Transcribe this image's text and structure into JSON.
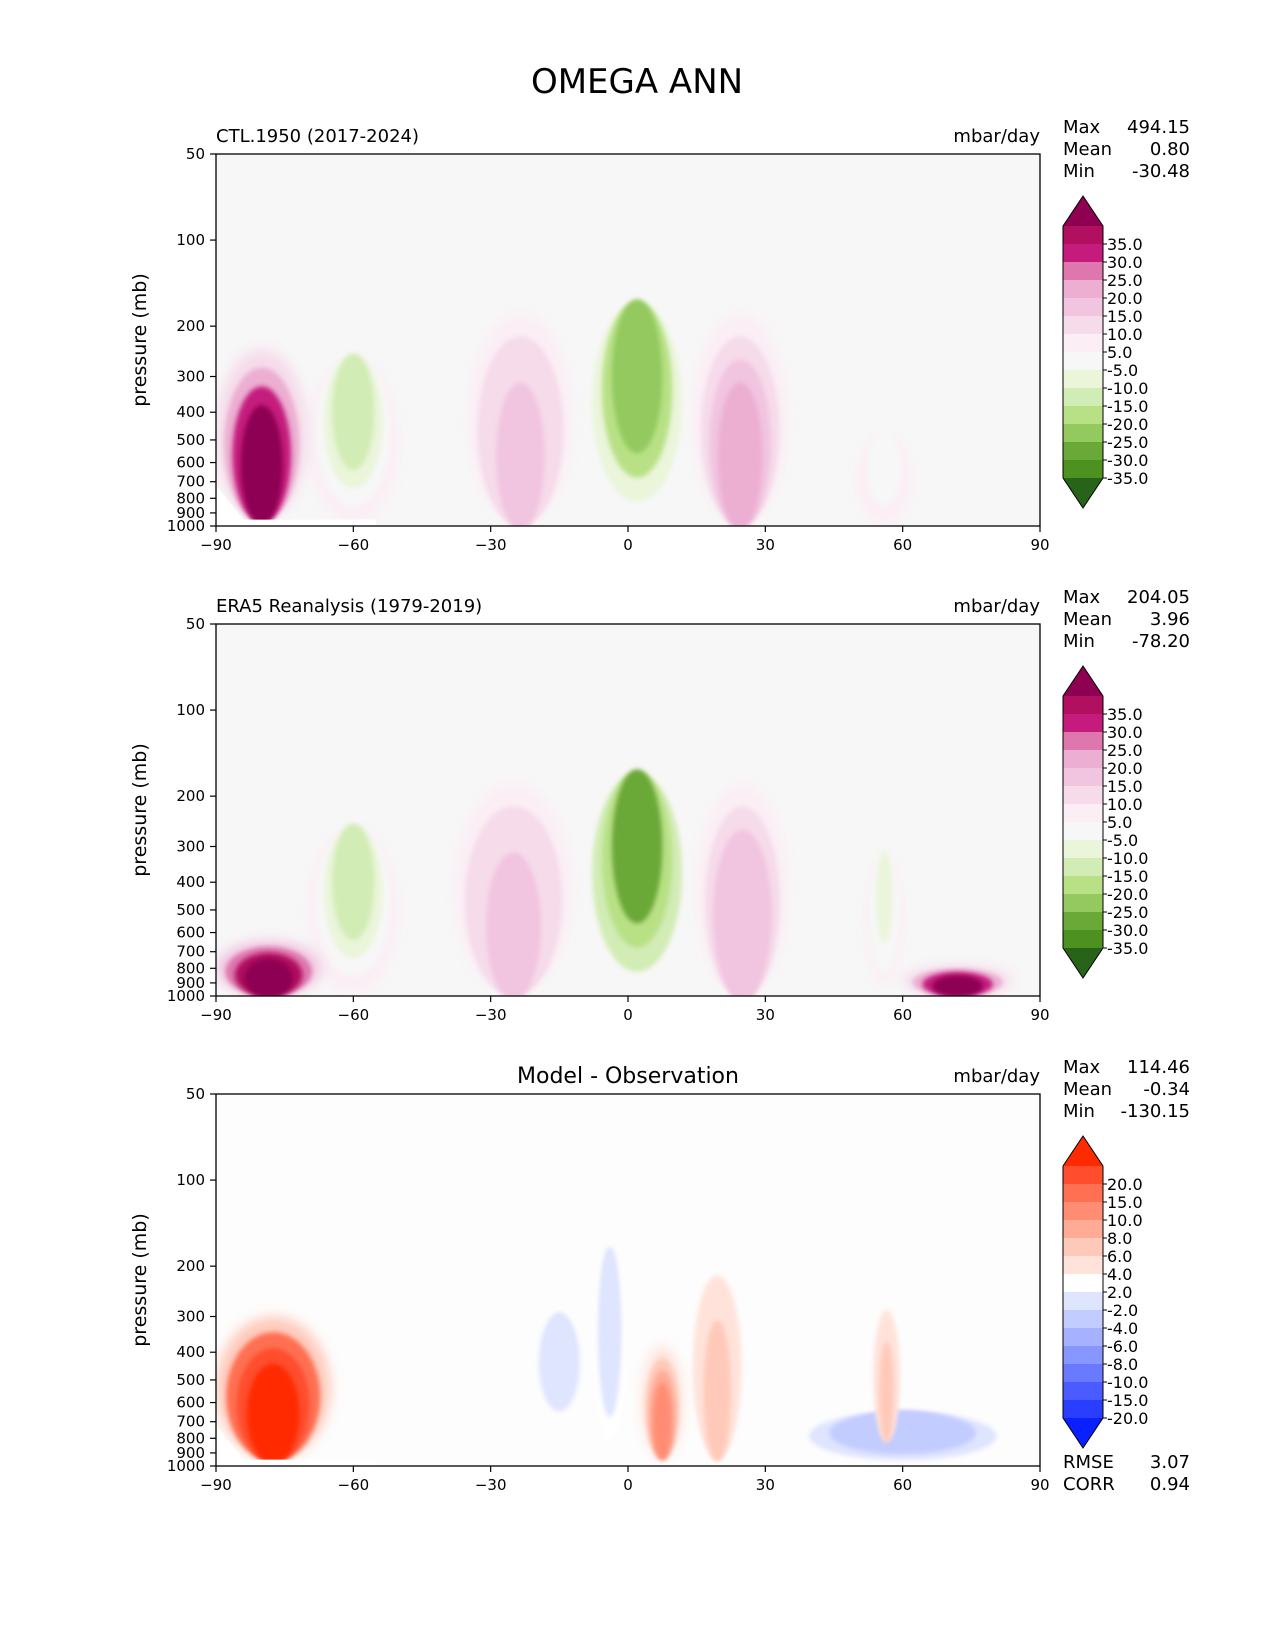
{
  "figure": {
    "title": "OMEGA ANN",
    "units": "mbar/day",
    "ylabel": "pressure (mb)"
  },
  "chart_data": [
    {
      "type": "heatmap",
      "title": "CTL.1950 (2017-2024)",
      "units": "mbar/day",
      "xlabel": "",
      "ylabel": "pressure (mb)",
      "xlim": [
        -90,
        90
      ],
      "ylim": [
        1000,
        50
      ],
      "xticks": [
        "−90",
        "−60",
        "−30",
        "0",
        "30",
        "60",
        "90"
      ],
      "yticks": [
        "50",
        "100",
        "200",
        "300",
        "400",
        "500",
        "600",
        "700",
        "800",
        "900",
        "1000"
      ],
      "stats": {
        "max_label": "Max",
        "max": "494.15",
        "mean_label": "Mean",
        "mean": "0.80",
        "min_label": "Min",
        "min": "-30.48"
      },
      "colorbar": {
        "labels": [
          "35.0",
          "30.0",
          "25.0",
          "20.0",
          "15.0",
          "10.0",
          "5.0",
          "-5.0",
          "-10.0",
          "-15.0",
          "-20.0",
          "-25.0",
          "-30.0",
          "-35.0"
        ],
        "colors": [
          "#8e0152",
          "#b0105f",
          "#c51b7d",
          "#de77ae",
          "#ecaed1",
          "#f1c4e0",
          "#f6dbea",
          "#fbeef5",
          "#f7f7f7",
          "#eaf5da",
          "#d2ecb5",
          "#b8e186",
          "#93c95f",
          "#6aa838",
          "#4d9221",
          "#276419"
        ]
      },
      "features": [
        {
          "name": "updraft-tropics",
          "lat": [
            -10,
            14
          ],
          "p": [
            170,
            1000
          ],
          "value": -30
        },
        {
          "name": "downdraft-south-subtropics",
          "lat": [
            -35,
            -12
          ],
          "p": [
            180,
            980
          ],
          "value": 12
        },
        {
          "name": "downdraft-north-subtropics",
          "lat": [
            14,
            35
          ],
          "p": [
            180,
            980
          ],
          "value": 15
        },
        {
          "name": "updraft-south-midlat",
          "lat": [
            -70,
            -50
          ],
          "p": [
            260,
            990
          ],
          "value": -18
        },
        {
          "name": "downdraft-antarctic",
          "lat": [
            -90,
            -70
          ],
          "p": [
            240,
            950
          ],
          "value": 35
        },
        {
          "name": "updraft-north-midlat",
          "lat": [
            50,
            62
          ],
          "p": [
            480,
            1000
          ],
          "value": -8
        }
      ]
    },
    {
      "type": "heatmap",
      "title": "ERA5 Reanalysis (1979-2019)",
      "units": "mbar/day",
      "xlabel": "",
      "ylabel": "pressure (mb)",
      "xlim": [
        -90,
        90
      ],
      "ylim": [
        1000,
        50
      ],
      "xticks": [
        "−90",
        "−60",
        "−30",
        "0",
        "30",
        "60",
        "90"
      ],
      "yticks": [
        "50",
        "100",
        "200",
        "300",
        "400",
        "500",
        "600",
        "700",
        "800",
        "900",
        "1000"
      ],
      "stats": {
        "max_label": "Max",
        "max": "204.05",
        "mean_label": "Mean",
        "mean": "3.96",
        "min_label": "Min",
        "min": "-78.20"
      },
      "colorbar": {
        "labels": [
          "35.0",
          "30.0",
          "25.0",
          "20.0",
          "15.0",
          "10.0",
          "5.0",
          "-5.0",
          "-10.0",
          "-15.0",
          "-20.0",
          "-25.0",
          "-30.0",
          "-35.0"
        ],
        "colors": [
          "#8e0152",
          "#b0105f",
          "#c51b7d",
          "#de77ae",
          "#ecaed1",
          "#f1c4e0",
          "#f6dbea",
          "#fbeef5",
          "#f7f7f7",
          "#eaf5da",
          "#d2ecb5",
          "#b8e186",
          "#93c95f",
          "#6aa838",
          "#4d9221",
          "#276419"
        ]
      },
      "features": [
        {
          "name": "updraft-tropics",
          "lat": [
            -10,
            14
          ],
          "p": [
            170,
            1000
          ],
          "value": -32
        },
        {
          "name": "downdraft-south-subtropics",
          "lat": [
            -38,
            -12
          ],
          "p": [
            180,
            980
          ],
          "value": 12
        },
        {
          "name": "downdraft-north-subtropics",
          "lat": [
            15,
            35
          ],
          "p": [
            180,
            1000
          ],
          "value": 14
        },
        {
          "name": "updraft-south-midlat",
          "lat": [
            -70,
            -50
          ],
          "p": [
            260,
            990
          ],
          "value": -18
        },
        {
          "name": "downdraft-antarctic",
          "lat": [
            -90,
            -67
          ],
          "p": [
            640,
            1000
          ],
          "value": 40
        },
        {
          "name": "downdraft-arctic",
          "lat": [
            60,
            84
          ],
          "p": [
            780,
            1000
          ],
          "value": 35
        },
        {
          "name": "updraft-north-midlat",
          "lat": [
            52,
            60
          ],
          "p": [
            320,
            930
          ],
          "value": -12
        }
      ]
    },
    {
      "type": "heatmap",
      "title": "Model - Observation",
      "units": "mbar/day",
      "xlabel": "",
      "ylabel": "pressure (mb)",
      "xlim": [
        -90,
        90
      ],
      "ylim": [
        1000,
        50
      ],
      "xticks": [
        "−90",
        "−60",
        "−30",
        "0",
        "30",
        "60",
        "90"
      ],
      "yticks": [
        "50",
        "100",
        "200",
        "300",
        "400",
        "500",
        "600",
        "700",
        "800",
        "900",
        "1000"
      ],
      "stats": {
        "max_label": "Max",
        "max": "114.46",
        "mean_label": "Mean",
        "mean": "-0.34",
        "min_label": "Min",
        "min": "-130.15"
      },
      "metrics": {
        "rmse_label": "RMSE",
        "rmse": "3.07",
        "corr_label": "CORR",
        "corr": "0.94"
      },
      "colorbar": {
        "labels": [
          "20.0",
          "15.0",
          "10.0",
          "8.0",
          "6.0",
          "4.0",
          "2.0",
          "-2.0",
          "-4.0",
          "-6.0",
          "-8.0",
          "-10.0",
          "-15.0",
          "-20.0"
        ],
        "colors": [
          "#ff2a00",
          "#ff4d2e",
          "#ff6f52",
          "#ff8d73",
          "#ffab96",
          "#ffc9ba",
          "#ffe3da",
          "#ffffff",
          "#dfe4ff",
          "#c3ccff",
          "#a6b2ff",
          "#8896ff",
          "#6a7aff",
          "#4a5cff",
          "#2a3eff",
          "#0a20ff"
        ]
      },
      "features": [
        {
          "name": "positive-bias-tropics",
          "lat": [
            3,
            12
          ],
          "p": [
            380,
            930
          ],
          "value": 8
        },
        {
          "name": "negative-bias-equator",
          "lat": [
            -8,
            0
          ],
          "p": [
            180,
            980
          ],
          "value": -4
        },
        {
          "name": "negative-bias-south-subtropics",
          "lat": [
            -22,
            -8
          ],
          "p": [
            300,
            800
          ],
          "value": -3
        },
        {
          "name": "positive-bias-north-subtropics",
          "lat": [
            13,
            26
          ],
          "p": [
            180,
            920
          ],
          "value": 4
        },
        {
          "name": "mixed-bias-antarctic",
          "lat": [
            -90,
            -65
          ],
          "p": [
            300,
            950
          ],
          "value": 20
        },
        {
          "name": "negative-bias-arctic",
          "lat": [
            35,
            85
          ],
          "p": [
            650,
            1000
          ],
          "value": -6
        },
        {
          "name": "positive-bias-north-midlat",
          "lat": [
            53,
            60
          ],
          "p": [
            250,
            800
          ],
          "value": 4
        }
      ]
    }
  ]
}
